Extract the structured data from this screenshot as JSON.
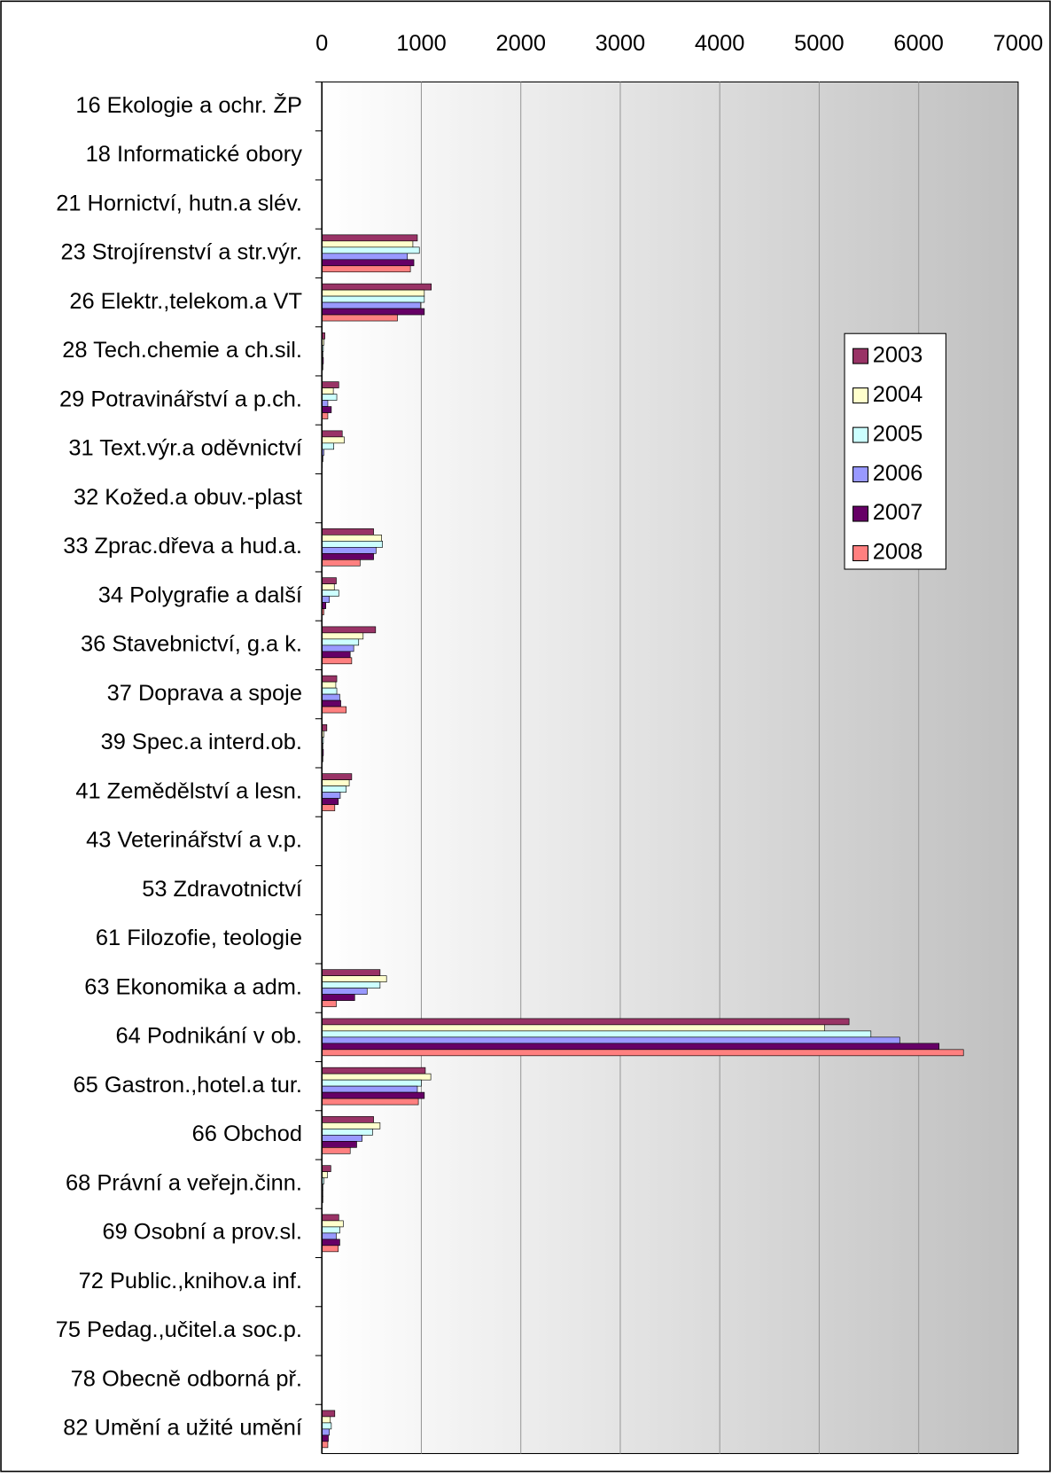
{
  "chart_data": {
    "type": "bar",
    "orientation": "horizontal",
    "categories": [
      "16 Ekologie a ochr. ŽP",
      "18 Informatické obory",
      "21 Hornictví, hutn.a slév.",
      "23 Strojírenství a str.výr.",
      "26 Elektr.,telekom.a VT",
      "28 Tech.chemie a ch.sil.",
      "29 Potravinářství a p.ch.",
      "31 Text.výr.a oděvnictví",
      "32 Kožed.a obuv.-plast",
      "33 Zprac.dřeva a hud.a.",
      "34 Polygrafie a další",
      "36 Stavebnictví, g.a k.",
      "37 Doprava a spoje",
      "39 Spec.a interd.ob.",
      "41 Zemědělství a lesn.",
      "43 Veterinářství a v.p.",
      "53 Zdravotnictví",
      "61 Filozofie, teologie",
      "63 Ekonomika a adm.",
      "64 Podnikání v ob.",
      "65 Gastron.,hotel.a tur.",
      "66 Obchod",
      "68 Právní a veřejn.činn.",
      "69 Osobní a prov.sl.",
      "72 Public.,knihov.a inf.",
      "75 Pedag.,učitel.a soc.p.",
      "78 Obecně odborná př.",
      "82 Umění a užité umění"
    ],
    "series": [
      {
        "name": "2003",
        "color": "#993366",
        "values": [
          0,
          0,
          0,
          960,
          1100,
          30,
          170,
          205,
          0,
          520,
          145,
          540,
          150,
          50,
          300,
          0,
          0,
          0,
          585,
          5300,
          1040,
          520,
          90,
          170,
          0,
          0,
          0,
          130
        ]
      },
      {
        "name": "2004",
        "color": "#ffffcc",
        "values": [
          0,
          0,
          0,
          915,
          1030,
          20,
          115,
          225,
          0,
          600,
          125,
          415,
          140,
          20,
          275,
          0,
          0,
          0,
          650,
          5055,
          1095,
          585,
          55,
          215,
          0,
          0,
          0,
          85
        ]
      },
      {
        "name": "2005",
        "color": "#ccffff",
        "values": [
          0,
          0,
          0,
          980,
          1030,
          15,
          150,
          120,
          0,
          610,
          170,
          370,
          150,
          15,
          245,
          0,
          0,
          0,
          585,
          5520,
          1000,
          510,
          20,
          180,
          0,
          0,
          0,
          95
        ]
      },
      {
        "name": "2006",
        "color": "#9999ff",
        "values": [
          0,
          0,
          0,
          860,
          990,
          10,
          60,
          20,
          0,
          545,
          75,
          320,
          180,
          10,
          185,
          0,
          0,
          0,
          455,
          5810,
          960,
          405,
          10,
          145,
          0,
          0,
          0,
          75
        ]
      },
      {
        "name": "2007",
        "color": "#660066",
        "values": [
          0,
          0,
          0,
          925,
          1030,
          15,
          95,
          10,
          0,
          520,
          40,
          285,
          190,
          15,
          165,
          0,
          0,
          0,
          330,
          6205,
          1030,
          350,
          10,
          180,
          0,
          0,
          0,
          65
        ]
      },
      {
        "name": "2008",
        "color": "#ff8080",
        "values": [
          0,
          0,
          0,
          890,
          760,
          10,
          60,
          5,
          0,
          385,
          20,
          300,
          245,
          10,
          130,
          0,
          0,
          0,
          145,
          6450,
          970,
          285,
          10,
          165,
          0,
          0,
          0,
          60
        ]
      }
    ],
    "xlim": [
      0,
      7000
    ],
    "xticks": [
      0,
      1000,
      2000,
      3000,
      4000,
      5000,
      6000,
      7000
    ],
    "grid": true,
    "legend": "right"
  }
}
